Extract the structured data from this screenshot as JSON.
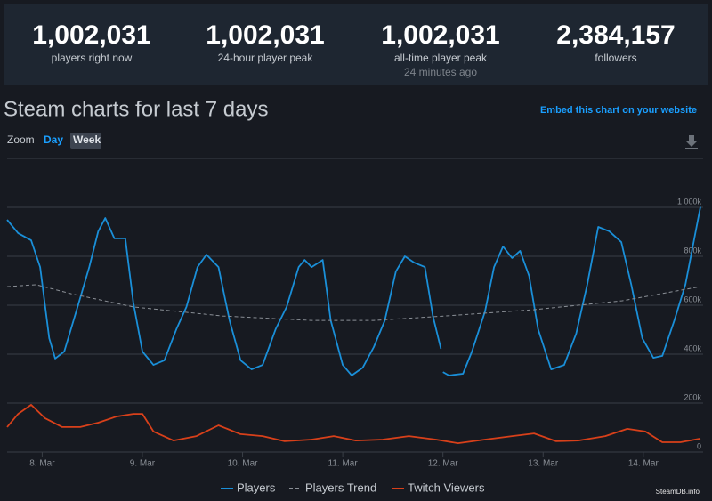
{
  "stats": [
    {
      "value": "1,002,031",
      "label": "players right now"
    },
    {
      "value": "1,002,031",
      "label": "24-hour player peak"
    },
    {
      "value": "1,002,031",
      "label": "all-time player peak",
      "note": "24 minutes ago"
    },
    {
      "value": "2,384,157",
      "label": "followers"
    }
  ],
  "chart_data": {
    "type": "line",
    "title": "Steam charts for last 7 days",
    "embed_link": "Embed this chart on your website",
    "zoom_label": "Zoom",
    "zoom_options": [
      "Day",
      "Week"
    ],
    "credit": "SteamDB.info",
    "xlim": [
      7.65,
      14.57
    ],
    "xticks": [
      {
        "value": 8,
        "label": "8. Mar"
      },
      {
        "value": 9,
        "label": "9. Mar"
      },
      {
        "value": 10,
        "label": "10. Mar"
      },
      {
        "value": 11,
        "label": "11. Mar"
      },
      {
        "value": 12,
        "label": "12. Mar"
      },
      {
        "value": 13,
        "label": "13. Mar"
      },
      {
        "value": 14,
        "label": "14. Mar"
      }
    ],
    "ylim": [
      0,
      1200000
    ],
    "yticks": [
      0,
      {
        "value": 200000,
        "label": "200k"
      },
      {
        "value": 400000,
        "label": "400k"
      },
      {
        "value": 600000,
        "label": "600k"
      },
      {
        "value": 800000,
        "label": "800k"
      },
      {
        "value": 1000000,
        "label": "1 000k"
      }
    ],
    "grid": true,
    "series": [
      {
        "name": "Players",
        "color": "#1a8fd8",
        "x": [
          7.65,
          7.76,
          7.89,
          7.98,
          8.07,
          8.13,
          8.22,
          8.34,
          8.47,
          8.56,
          8.63,
          8.72,
          8.83,
          8.91,
          9.0,
          9.11,
          9.22,
          9.34,
          9.44,
          9.55,
          9.64,
          9.76,
          9.87,
          9.98,
          10.09,
          10.2,
          10.33,
          10.44,
          10.56,
          10.62,
          10.69,
          10.8,
          10.88,
          11.0,
          11.09,
          11.2,
          11.31,
          11.42,
          11.53,
          11.62,
          11.71,
          11.82,
          11.9,
          11.98,
          11.99,
          12.0,
          12.06,
          12.2,
          12.29,
          12.42,
          12.51,
          12.6,
          12.69,
          12.77,
          12.86,
          12.95,
          13.08,
          13.21,
          13.33,
          13.44,
          13.55,
          13.66,
          13.78,
          13.88,
          13.99,
          14.1,
          14.19,
          14.31,
          14.42,
          14.57
        ],
        "values": [
          949000,
          894000,
          865000,
          756000,
          465000,
          382000,
          411000,
          575000,
          756000,
          902000,
          956000,
          873000,
          873000,
          611000,
          411000,
          356000,
          375000,
          502000,
          593000,
          756000,
          807000,
          756000,
          538000,
          375000,
          338000,
          356000,
          502000,
          593000,
          756000,
          785000,
          756000,
          785000,
          538000,
          356000,
          313000,
          345000,
          429000,
          538000,
          738000,
          800000,
          775000,
          756000,
          556000,
          422000,
          null,
          327000,
          313000,
          320000,
          411000,
          575000,
          756000,
          840000,
          793000,
          822000,
          720000,
          502000,
          338000,
          356000,
          484000,
          684000,
          920000,
          902000,
          858000,
          684000,
          465000,
          385000,
          393000,
          538000,
          684000,
          1002031
        ]
      },
      {
        "name": "Players Trend",
        "color": "#8a8f96",
        "dash": true,
        "x": [
          7.65,
          7.94,
          8.29,
          8.91,
          9.8,
          10.69,
          11.31,
          12.02,
          12.91,
          13.79,
          14.57
        ],
        "values": [
          676000,
          684000,
          647000,
          593000,
          556000,
          538000,
          538000,
          556000,
          582000,
          618000,
          676000
        ]
      },
      {
        "name": "Twitch Viewers",
        "color": "#d8401a",
        "x": [
          7.65,
          7.76,
          7.89,
          8.03,
          8.2,
          8.38,
          8.56,
          8.74,
          8.91,
          9.0,
          9.11,
          9.31,
          9.54,
          9.76,
          9.98,
          10.2,
          10.42,
          10.69,
          10.91,
          11.13,
          11.4,
          11.66,
          11.93,
          12.15,
          12.42,
          12.69,
          12.91,
          13.13,
          13.35,
          13.62,
          13.84,
          14.02,
          14.19,
          14.37,
          14.57
        ],
        "values": [
          102000,
          156000,
          193000,
          138000,
          102000,
          102000,
          120000,
          145000,
          156000,
          156000,
          84000,
          47000,
          65000,
          109000,
          73000,
          65000,
          44000,
          51000,
          65000,
          47000,
          51000,
          65000,
          51000,
          36000,
          51000,
          65000,
          76000,
          44000,
          47000,
          65000,
          95000,
          84000,
          40000,
          40000,
          55000
        ]
      }
    ]
  }
}
